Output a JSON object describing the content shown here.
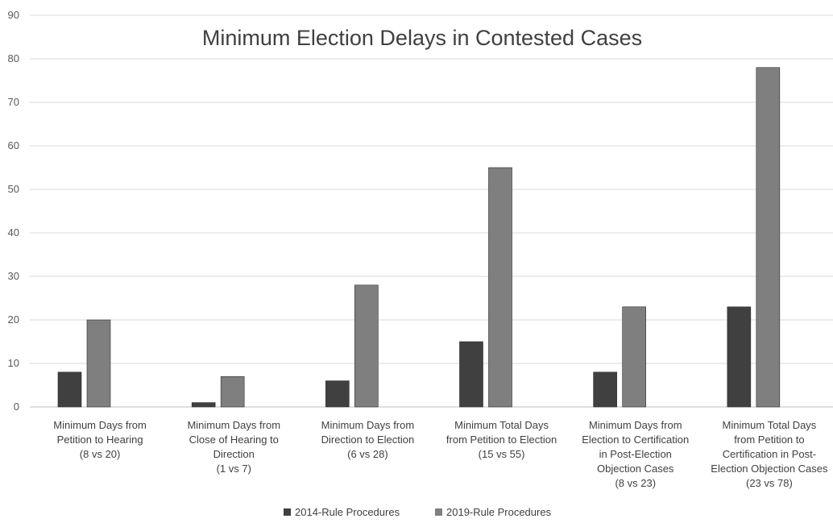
{
  "chart_data": {
    "type": "bar",
    "title": "Minimum Election Delays in Contested Cases",
    "ylim": [
      0,
      90
    ],
    "yticks": [
      0,
      10,
      20,
      30,
      40,
      50,
      60,
      70,
      80,
      90
    ],
    "grid": true,
    "legend_position": "bottom",
    "categories": [
      [
        "Minimum Days from",
        "Petition to Hearing",
        "(8 vs 20)"
      ],
      [
        "Minimum Days from",
        "Close of Hearing to",
        "Direction",
        "(1 vs 7)"
      ],
      [
        "Minimum Days from",
        "Direction to Election",
        "(6 vs 28)"
      ],
      [
        "Minimum Total Days",
        "from Petition to Election",
        "(15 vs 55)"
      ],
      [
        "Minimum Days from",
        "Election to Certification",
        "in Post-Election",
        "Objection Cases",
        "(8 vs 23)"
      ],
      [
        "Minimum Total Days",
        "from Petition to",
        "Certification in Post-",
        "Election Objection Cases",
        "(23 vs 78)"
      ]
    ],
    "series": [
      {
        "name": "2014-Rule Procedures",
        "color": "#404040",
        "values": [
          8,
          1,
          6,
          15,
          8,
          23
        ]
      },
      {
        "name": "2019-Rule Procedures",
        "color": "#7f7f7f",
        "values": [
          20,
          7,
          28,
          55,
          23,
          78
        ]
      }
    ]
  }
}
